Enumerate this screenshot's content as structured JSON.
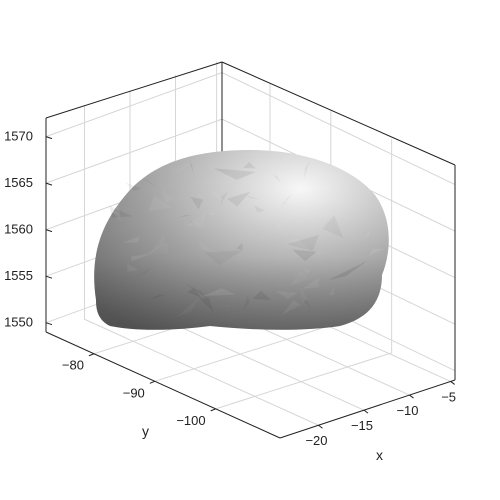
{
  "chart_data": {
    "type": "surface3d",
    "title": "",
    "xlabel": "x",
    "ylabel": "y",
    "zlabel": "",
    "x_ticks": [
      "−20",
      "−15",
      "−10",
      "−5"
    ],
    "y_ticks": [
      "−80",
      "−90",
      "−100"
    ],
    "z_ticks": [
      "1550",
      "1555",
      "1560",
      "1565",
      "1570"
    ],
    "z_range": [
      1549,
      1572
    ],
    "grid": true,
    "surface_color": "#8c8c8c",
    "highlight_color": "#f2f2f2",
    "shadow_color": "#5f5f5f",
    "box_color": "#222222",
    "grid_color": "#d6d6d6"
  }
}
